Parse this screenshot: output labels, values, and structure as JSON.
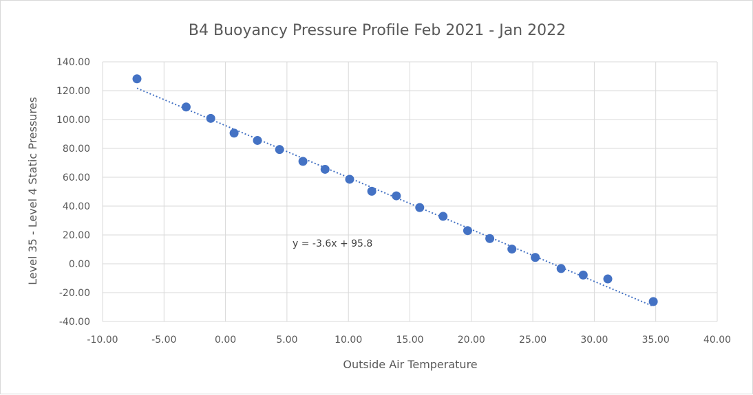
{
  "chart_data": {
    "type": "scatter",
    "title": "B4 Buoyancy Pressure Profile Feb 2021 - Jan 2022",
    "xlabel": "Outside Air Temperature",
    "ylabel": "Level 35 - Level 4 Static Pressures",
    "xlim": [
      -10,
      40
    ],
    "ylim": [
      -40,
      140
    ],
    "x_ticks": [
      "-10.00",
      "-5.00",
      "0.00",
      "5.00",
      "10.00",
      "15.00",
      "20.00",
      "25.00",
      "30.00",
      "35.00",
      "40.00"
    ],
    "y_ticks": [
      "-40.00",
      "-20.00",
      "0.00",
      "20.00",
      "40.00",
      "60.00",
      "80.00",
      "100.00",
      "120.00",
      "140.00"
    ],
    "grid": true,
    "legend": "none",
    "series": [
      {
        "color": "#4472c4",
        "points": [
          [
            -7.2,
            128.2
          ],
          [
            -3.2,
            108.7
          ],
          [
            -1.2,
            100.8
          ],
          [
            0.7,
            90.6
          ],
          [
            2.6,
            85.5
          ],
          [
            4.4,
            79.2
          ],
          [
            6.3,
            71.0
          ],
          [
            8.1,
            65.5
          ],
          [
            10.1,
            58.6
          ],
          [
            11.9,
            50.3
          ],
          [
            13.9,
            47.1
          ],
          [
            15.8,
            39.0
          ],
          [
            17.7,
            32.9
          ],
          [
            19.7,
            23.0
          ],
          [
            21.5,
            17.5
          ],
          [
            23.3,
            10.2
          ],
          [
            25.2,
            4.4
          ],
          [
            27.3,
            -3.3
          ],
          [
            29.1,
            -7.8
          ],
          [
            31.1,
            -10.5
          ],
          [
            34.8,
            -26.2
          ]
        ]
      }
    ],
    "trendline": {
      "label": "y = -3.6x + 95.8",
      "slope": -3.6,
      "intercept": 95.8,
      "x_range": [
        -7.2,
        34.8
      ],
      "color": "#4472c4",
      "style": "dotted"
    }
  }
}
